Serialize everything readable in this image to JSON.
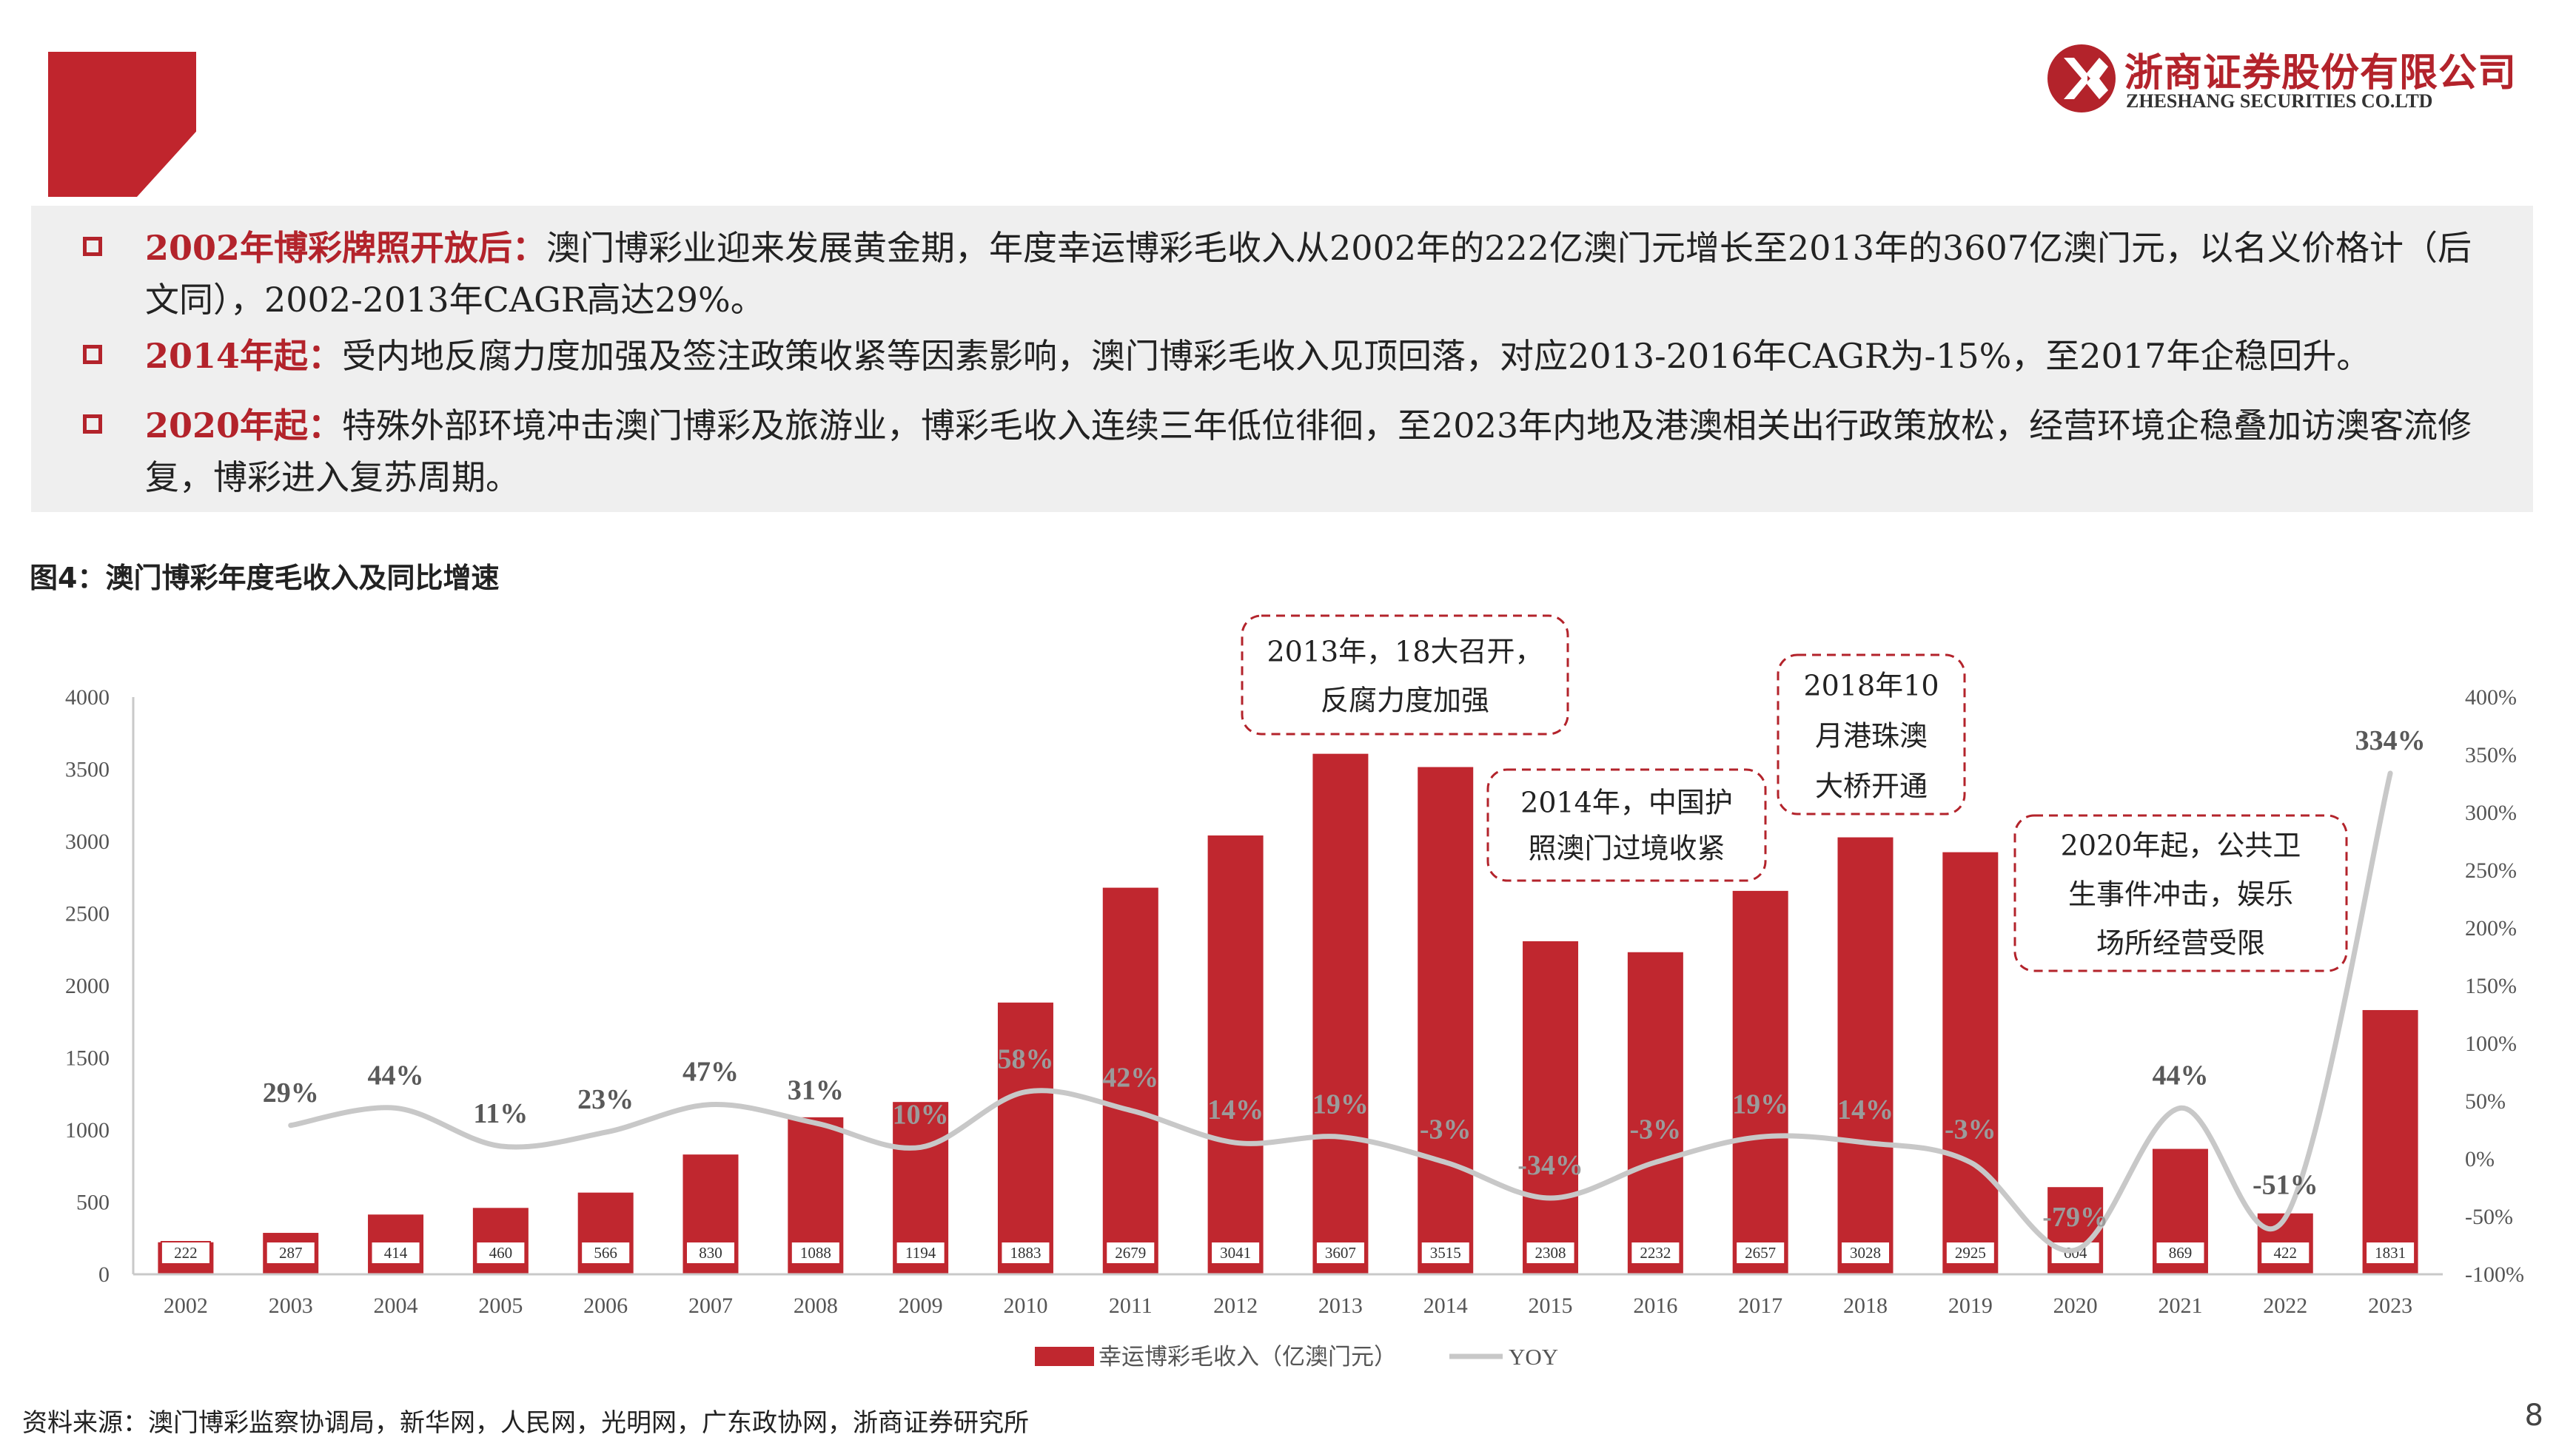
{
  "header": {
    "company_cn": "浙商证券股份有限公司",
    "company_en": "ZHESHANG SECURITIES CO.LTD",
    "brand_color": "#b3232b"
  },
  "summary": [
    {
      "lead": "2002年博彩牌照开放后：",
      "text": "澳门博彩业迎来发展黄金期，年度幸运博彩毛收入从2002年的222亿澳门元增长至2013年的3607亿澳门元，以名义价格计（后文同），2002-2013年CAGR高达29%。"
    },
    {
      "lead": "2014年起：",
      "text": "受内地反腐力度加强及签注政策收紧等因素影响，澳门博彩毛收入见顶回落，对应2013-2016年CAGR为-15%，至2017年企稳回升。"
    },
    {
      "lead": "2020年起：",
      "text": "特殊外部环境冲击澳门博彩及旅游业，博彩毛收入连续三年低位徘徊，至2023年内地及港澳相关出行政策放松，经营环境企稳叠加访澳客流修复，博彩进入复苏周期。"
    }
  ],
  "figure_title": "图4：澳门博彩年度毛收入及同比增速",
  "chart_data": {
    "type": "bar",
    "categories": [
      "2002",
      "2003",
      "2004",
      "2005",
      "2006",
      "2007",
      "2008",
      "2009",
      "2010",
      "2011",
      "2012",
      "2013",
      "2014",
      "2015",
      "2016",
      "2017",
      "2018",
      "2019",
      "2020",
      "2021",
      "2022",
      "2023"
    ],
    "series": [
      {
        "name": "幸运博彩毛收入（亿澳门元）",
        "type": "bar",
        "axis": "left",
        "color": "#c0272f",
        "values": [
          222,
          287,
          414,
          460,
          566,
          830,
          1088,
          1194,
          1883,
          2679,
          3041,
          3607,
          3515,
          2308,
          2232,
          2657,
          3028,
          2925,
          604,
          869,
          422,
          1831
        ]
      },
      {
        "name": "YOY",
        "type": "line",
        "axis": "right",
        "color": "#c8c8c8",
        "values": [
          null,
          29,
          44,
          11,
          23,
          47,
          31,
          10,
          58,
          42,
          14,
          19,
          -3,
          -34,
          -3,
          19,
          14,
          -3,
          -79,
          44,
          -51,
          334
        ],
        "labels": [
          "",
          "29%",
          "44%",
          "11%",
          "23%",
          "47%",
          "31%",
          "10%",
          "58%",
          "42%",
          "14%",
          "19%",
          "-3%",
          "-34%",
          "-3%",
          "19%",
          "14%",
          "-3%",
          "-79%",
          "44%",
          "-51%",
          "334%"
        ]
      }
    ],
    "y_left": {
      "lim": [
        0,
        4000
      ],
      "ticks": [
        "0",
        "500",
        "1000",
        "1500",
        "2000",
        "2500",
        "3000",
        "3500",
        "4000"
      ]
    },
    "y_right": {
      "lim": [
        -100,
        400
      ],
      "ticks": [
        "-100%",
        "-50%",
        "0%",
        "50%",
        "100%",
        "150%",
        "200%",
        "250%",
        "300%",
        "350%",
        "400%"
      ]
    },
    "legend": {
      "position": "bottom",
      "bar_label": "幸运博彩毛收入（亿澳门元）",
      "line_label": "YOY"
    },
    "annotations": [
      {
        "lines": [
          "2013年，18大召开，",
          "反腐力度加强"
        ]
      },
      {
        "lines": [
          "2014年，中国护",
          "照澳门过境收紧"
        ]
      },
      {
        "lines": [
          "2018年10",
          "月港珠澳",
          "大桥开通"
        ]
      },
      {
        "lines": [
          "2020年起，公共卫",
          "生事件冲击，娱乐",
          "场所经营受限"
        ]
      }
    ]
  },
  "source": "资料来源：澳门博彩监察协调局，新华网，人民网，光明网，广东政协网，浙商证券研究所",
  "page_number": "8"
}
